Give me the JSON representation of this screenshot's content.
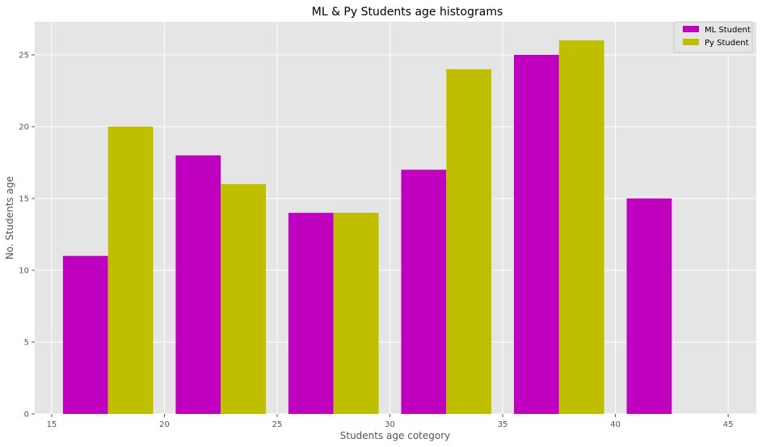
{
  "chart_data": {
    "type": "bar",
    "title": "ML & Py Students age histograms",
    "xlabel": "Students age cotegory",
    "ylabel": "No. Students age",
    "xlim": [
      14.25,
      46.25
    ],
    "ylim": [
      0,
      27.3
    ],
    "xticks": [
      15,
      20,
      25,
      30,
      35,
      40,
      45
    ],
    "yticks": [
      0,
      5,
      10,
      15,
      20,
      25
    ],
    "grid": true,
    "legend_position": "top-right",
    "series": [
      {
        "name": "ML Student",
        "color": "#bf00bf",
        "bars": [
          {
            "x_start": 15.5,
            "x_end": 17.5,
            "value": 11
          },
          {
            "x_start": 20.5,
            "x_end": 22.5,
            "value": 18
          },
          {
            "x_start": 25.5,
            "x_end": 27.5,
            "value": 14
          },
          {
            "x_start": 30.5,
            "x_end": 32.5,
            "value": 17
          },
          {
            "x_start": 35.5,
            "x_end": 37.5,
            "value": 25
          },
          {
            "x_start": 40.5,
            "x_end": 42.5,
            "value": 15
          }
        ]
      },
      {
        "name": "Py Student",
        "color": "#bfbf00",
        "bars": [
          {
            "x_start": 17.5,
            "x_end": 19.5,
            "value": 20
          },
          {
            "x_start": 22.5,
            "x_end": 24.5,
            "value": 16
          },
          {
            "x_start": 27.5,
            "x_end": 29.5,
            "value": 14
          },
          {
            "x_start": 32.5,
            "x_end": 34.5,
            "value": 24
          },
          {
            "x_start": 37.5,
            "x_end": 39.5,
            "value": 26
          }
        ]
      }
    ]
  }
}
